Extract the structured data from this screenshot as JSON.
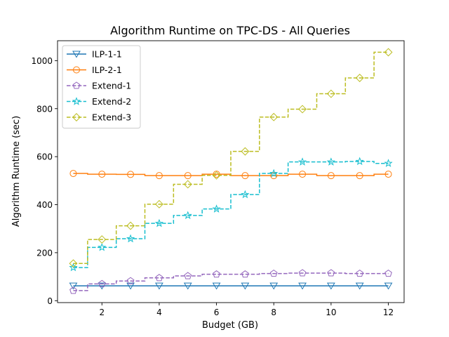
{
  "chart_data": {
    "type": "line",
    "title": "Algorithm Runtime on TPC-DS - All Queries",
    "xlabel": "Budget (GB)",
    "ylabel": "Algorithm Runtime (sec)",
    "xlim": [
      0.45,
      12.55
    ],
    "ylim": [
      -8,
      1083
    ],
    "xticks": [
      2,
      4,
      6,
      8,
      10,
      12
    ],
    "yticks": [
      0,
      200,
      400,
      600,
      800,
      1000
    ],
    "grid": false,
    "legend_position": "top-left",
    "step": "mid",
    "x": [
      1,
      2,
      3,
      4,
      5,
      6,
      7,
      8,
      9,
      10,
      11,
      12
    ],
    "series": [
      {
        "name": "ILP-1-1",
        "color": "#1f77b4",
        "linestyle": "solid",
        "marker": "triangle-down",
        "values": [
          62,
          62,
          62,
          62,
          62,
          62,
          62,
          62,
          62,
          62,
          62,
          62
        ]
      },
      {
        "name": "ILP-2-1",
        "color": "#ff7f0e",
        "linestyle": "solid",
        "marker": "circle",
        "values": [
          530,
          527,
          526,
          521,
          521,
          527,
          521,
          521,
          527,
          521,
          521,
          527
        ]
      },
      {
        "name": "Extend-1",
        "color": "#9467bd",
        "linestyle": "dashed",
        "marker": "pentagon",
        "values": [
          42,
          70,
          82,
          95,
          103,
          110,
          110,
          113,
          115,
          115,
          113,
          113
        ]
      },
      {
        "name": "Extend-2",
        "color": "#17becf",
        "linestyle": "dashed",
        "marker": "star",
        "values": [
          138,
          222,
          258,
          322,
          355,
          382,
          442,
          530,
          578,
          578,
          580,
          572
        ]
      },
      {
        "name": "Extend-3",
        "color": "#bcbd22",
        "linestyle": "dashed",
        "marker": "diamond",
        "values": [
          155,
          255,
          312,
          402,
          485,
          522,
          622,
          765,
          798,
          862,
          928,
          1035
        ]
      }
    ]
  }
}
